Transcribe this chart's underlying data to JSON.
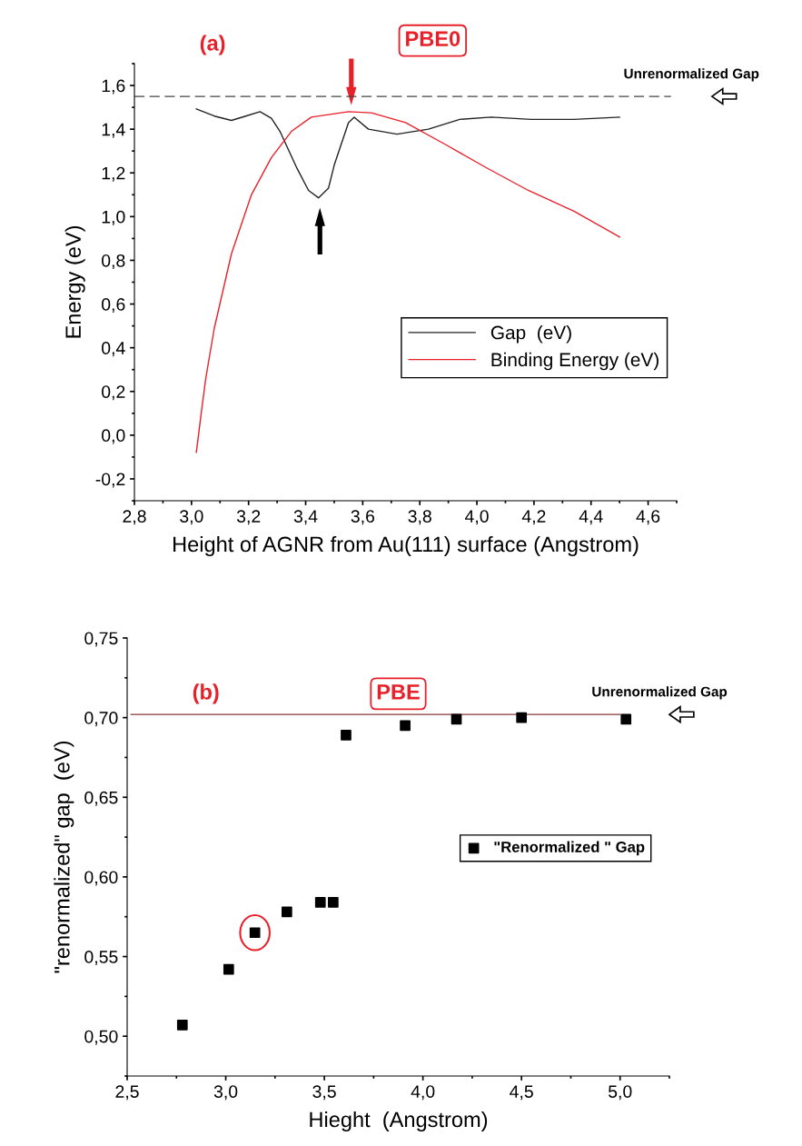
{
  "chart_data": [
    {
      "type": "line",
      "xlabel": "Height of AGNR from Au(111) surface (Angstrom)",
      "ylabel": "Energy (eV)",
      "xlim": [
        2.8,
        4.7
      ],
      "ylim": [
        -0.3,
        1.7
      ],
      "xticks": [
        {
          "value": 2.8,
          "label": "2,8"
        },
        {
          "value": 3.0,
          "label": "3,0"
        },
        {
          "value": 3.2,
          "label": "3,2"
        },
        {
          "value": 3.4,
          "label": "3,4"
        },
        {
          "value": 3.6,
          "label": "3,6"
        },
        {
          "value": 3.8,
          "label": "3,8"
        },
        {
          "value": 4.0,
          "label": "4,0"
        },
        {
          "value": 4.2,
          "label": "4,2"
        },
        {
          "value": 4.4,
          "label": "4,4"
        },
        {
          "value": 4.6,
          "label": "4,6"
        }
      ],
      "yticks": [
        {
          "value": -0.2,
          "label": "-0,2"
        },
        {
          "value": 0.0,
          "label": "0,0"
        },
        {
          "value": 0.2,
          "label": "0,2"
        },
        {
          "value": 0.4,
          "label": "0,4"
        },
        {
          "value": 0.6,
          "label": "0,6"
        },
        {
          "value": 0.8,
          "label": "0,8"
        },
        {
          "value": 1.0,
          "label": "1,0"
        },
        {
          "value": 1.2,
          "label": "1,2"
        },
        {
          "value": 1.4,
          "label": "1,4"
        },
        {
          "value": 1.6,
          "label": "1,6"
        }
      ],
      "legend": "right",
      "grid": false,
      "marker": "none",
      "series": [
        {
          "name": "Gap  (eV)",
          "color": "#222222",
          "x": [
            3.017,
            3.08,
            3.14,
            3.19,
            3.24,
            3.28,
            3.31,
            3.37,
            3.41,
            3.445,
            3.48,
            3.5,
            3.55,
            3.57,
            3.62,
            3.72,
            3.83,
            3.94,
            4.05,
            4.19,
            4.34,
            4.5
          ],
          "values": [
            1.493,
            1.46,
            1.44,
            1.46,
            1.48,
            1.45,
            1.39,
            1.22,
            1.12,
            1.086,
            1.13,
            1.235,
            1.43,
            1.455,
            1.4,
            1.377,
            1.4,
            1.445,
            1.455,
            1.445,
            1.445,
            1.455
          ]
        },
        {
          "name": "Binding Energy (eV)",
          "color": "#e8202a",
          "x": [
            3.017,
            3.035,
            3.05,
            3.08,
            3.14,
            3.21,
            3.28,
            3.35,
            3.42,
            3.55,
            3.63,
            3.75,
            3.89,
            4.03,
            4.18,
            4.34,
            4.5
          ],
          "values": [
            -0.078,
            0.11,
            0.26,
            0.49,
            0.83,
            1.1,
            1.27,
            1.39,
            1.455,
            1.48,
            1.475,
            1.43,
            1.33,
            1.226,
            1.12,
            1.025,
            0.907
          ]
        },
        {
          "color": "#444444",
          "line_style": "dashed",
          "x": [
            2.8,
            4.68
          ],
          "values": [
            1.55,
            1.55
          ]
        }
      ],
      "annotations": [
        "(a)",
        "PBE0",
        {
          "text": "Unrenormalized Gap",
          "x": 4.68,
          "y": 1.55
        }
      ]
    },
    {
      "type": "scatter",
      "xlabel": "Hieght  (Angstrom)",
      "ylabel": "\"renormalized\" gap  (eV)",
      "xlim": [
        2.5,
        5.25
      ],
      "ylim": [
        0.475,
        0.75
      ],
      "xticks": [
        {
          "value": 2.5,
          "label": "2,5"
        },
        {
          "value": 3.0,
          "label": "3,0"
        },
        {
          "value": 3.5,
          "label": "3,5"
        },
        {
          "value": 4.0,
          "label": "4,0"
        },
        {
          "value": 4.5,
          "label": "4,5"
        },
        {
          "value": 5.0,
          "label": "5,0"
        }
      ],
      "yticks": [
        {
          "value": 0.5,
          "label": "0,50"
        },
        {
          "value": 0.55,
          "label": "0,55"
        },
        {
          "value": 0.6,
          "label": "0,60"
        },
        {
          "value": 0.65,
          "label": "0,65"
        },
        {
          "value": 0.7,
          "label": "0,70"
        },
        {
          "value": 0.75,
          "label": "0,75"
        }
      ],
      "legend": "right",
      "grid": false,
      "series": [
        {
          "name": "\"Renormalized \" Gap",
          "color": "#000000",
          "marker": "square",
          "x": [
            2.78,
            3.015,
            3.148,
            3.31,
            3.48,
            3.545,
            3.61,
            3.91,
            4.17,
            4.5,
            5.03
          ],
          "values": [
            0.507,
            0.542,
            0.565,
            0.578,
            0.584,
            0.584,
            0.689,
            0.695,
            0.699,
            0.7,
            0.699
          ]
        },
        {
          "type": "line",
          "color": "#8b3a3a",
          "x": [
            2.52,
            5.0
          ],
          "values": [
            0.702,
            0.702
          ]
        }
      ],
      "annotations": [
        "(b)",
        "PBE",
        {
          "text": "Unrenormalized Gap",
          "x": 5.0,
          "y": 0.702
        }
      ]
    }
  ]
}
